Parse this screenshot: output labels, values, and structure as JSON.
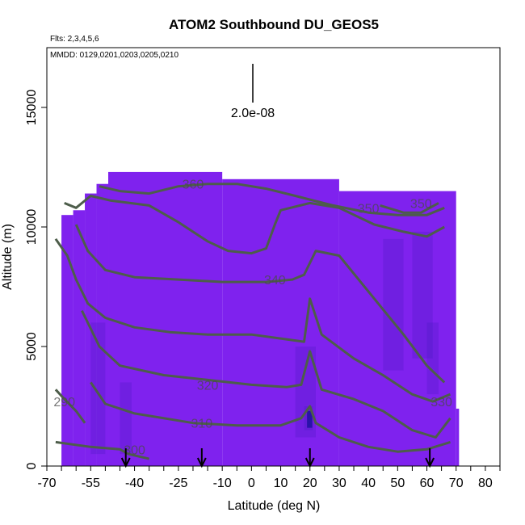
{
  "chart_data": {
    "type": "heatmap",
    "title": "ATOM2 Southbound DU_GEOS5",
    "flights_label": "Flts: 2,3,4,5,6",
    "dates_label": "MMDD: 0129,0201,0203,0205,0210",
    "xlabel": "Latitude (deg N)",
    "ylabel": "Altitude (m)",
    "xlim": [
      -70,
      85
    ],
    "ylim": [
      0,
      17500
    ],
    "x_ticks": [
      -70,
      -55,
      -40,
      -25,
      -10,
      0,
      10,
      20,
      30,
      40,
      50,
      60,
      70,
      80
    ],
    "y_ticks": [
      0,
      5000,
      10000,
      15000
    ],
    "scale_label": "2.0e-08",
    "background_color": "#7f22ee",
    "dark_color": "#3a17b8",
    "contour_color": "#4d5d4a",
    "contour_levels": [
      {
        "label": "290",
        "points": [
          [
            -67,
            3200
          ],
          [
            -64,
            2800
          ],
          [
            -60,
            2300
          ],
          [
            -57,
            1800
          ]
        ],
        "label_at": [
          -64,
          2700
        ]
      },
      {
        "label": "300",
        "points": [
          [
            -67,
            1000
          ],
          [
            -55,
            800
          ],
          [
            -45,
            700
          ],
          [
            -42,
            500
          ],
          [
            -35,
            300
          ]
        ],
        "label_at": [
          -40,
          700
        ]
      },
      {
        "label": "310",
        "points": [
          [
            -55,
            3500
          ],
          [
            -50,
            2600
          ],
          [
            -40,
            2200
          ],
          [
            -20,
            1800
          ],
          [
            -5,
            1700
          ],
          [
            10,
            1700
          ],
          [
            17,
            2000
          ],
          [
            20,
            2500
          ],
          [
            22,
            1800
          ],
          [
            30,
            1200
          ],
          [
            40,
            800
          ],
          [
            50,
            600
          ],
          [
            60,
            700
          ],
          [
            68,
            1000
          ]
        ],
        "label_at": [
          -17,
          1800
        ]
      },
      {
        "label": "320",
        "points": [
          [
            -58,
            6500
          ],
          [
            -52,
            5000
          ],
          [
            -45,
            4200
          ],
          [
            -30,
            3800
          ],
          [
            -15,
            3600
          ],
          [
            0,
            3400
          ],
          [
            12,
            3300
          ],
          [
            17,
            3400
          ],
          [
            20,
            4800
          ],
          [
            24,
            3200
          ],
          [
            35,
            2800
          ],
          [
            45,
            2300
          ],
          [
            55,
            1500
          ],
          [
            63,
            1200
          ],
          [
            68,
            2000
          ]
        ],
        "label_at": [
          -15,
          3400
        ]
      },
      {
        "label": "330",
        "points": [
          [
            -67,
            9500
          ],
          [
            -63,
            8800
          ],
          [
            -60,
            7800
          ],
          [
            -56,
            6800
          ],
          [
            -50,
            6200
          ],
          [
            -40,
            5800
          ],
          [
            -28,
            5600
          ],
          [
            -15,
            5500
          ],
          [
            0,
            5500
          ],
          [
            12,
            5300
          ],
          [
            18,
            5200
          ],
          [
            20,
            7000
          ],
          [
            24,
            5500
          ],
          [
            35,
            4500
          ],
          [
            45,
            3800
          ],
          [
            55,
            3000
          ],
          [
            62,
            2700
          ],
          [
            68,
            3000
          ]
        ],
        "label_at": [
          65,
          2700
        ]
      },
      {
        "label": "340",
        "points": [
          [
            -60,
            10100
          ],
          [
            -56,
            9000
          ],
          [
            -50,
            8200
          ],
          [
            -40,
            7900
          ],
          [
            -25,
            7800
          ],
          [
            -10,
            7700
          ],
          [
            5,
            7700
          ],
          [
            14,
            7800
          ],
          [
            18,
            8000
          ],
          [
            22,
            9000
          ],
          [
            30,
            8800
          ],
          [
            42,
            7000
          ],
          [
            52,
            5500
          ],
          [
            60,
            4200
          ],
          [
            66,
            3500
          ]
        ],
        "label_at": [
          8,
          7800
        ]
      },
      {
        "label": "350",
        "points": [
          [
            -64,
            11000
          ],
          [
            -60,
            10800
          ],
          [
            -55,
            11300
          ],
          [
            -48,
            11100
          ],
          [
            -35,
            10900
          ],
          [
            -25,
            10200
          ],
          [
            -15,
            9400
          ],
          [
            -8,
            9000
          ],
          [
            0,
            8900
          ],
          [
            5,
            9100
          ],
          [
            8,
            10100
          ],
          [
            10,
            10700
          ],
          [
            20,
            11000
          ],
          [
            30,
            10800
          ],
          [
            42,
            10100
          ],
          [
            52,
            9800
          ],
          [
            60,
            9600
          ],
          [
            66,
            10000
          ]
        ],
        "label_at": [
          40,
          10800
        ]
      },
      {
        "label": "360",
        "points": [
          [
            -52,
            11700
          ],
          [
            -45,
            11500
          ],
          [
            -35,
            11400
          ],
          [
            -25,
            11700
          ],
          [
            -15,
            11800
          ],
          [
            -5,
            11800
          ],
          [
            5,
            11600
          ],
          [
            15,
            11300
          ],
          [
            28,
            10900
          ],
          [
            40,
            10600
          ],
          [
            50,
            10500
          ],
          [
            60,
            10500
          ],
          [
            66,
            10800
          ]
        ],
        "label_at": [
          -20,
          11800
        ]
      },
      {
        "label": "350",
        "points": [
          [
            44,
            10900
          ],
          [
            52,
            10600
          ],
          [
            58,
            10600
          ],
          [
            64,
            11000
          ]
        ],
        "label_at": [
          58,
          11000
        ]
      }
    ],
    "arrow_latitudes": [
      -43,
      -17,
      20,
      61
    ],
    "data_extent": [
      [
        -65,
        -61,
        0,
        10500
      ],
      [
        -61,
        -57,
        0,
        10700
      ],
      [
        -57,
        -53,
        0,
        11400
      ],
      [
        -53,
        -49,
        0,
        11800
      ],
      [
        -49,
        -10,
        0,
        12300
      ],
      [
        -10,
        30,
        0,
        12000
      ],
      [
        30,
        70,
        0,
        11500
      ],
      [
        70,
        71,
        0,
        2400
      ]
    ]
  }
}
